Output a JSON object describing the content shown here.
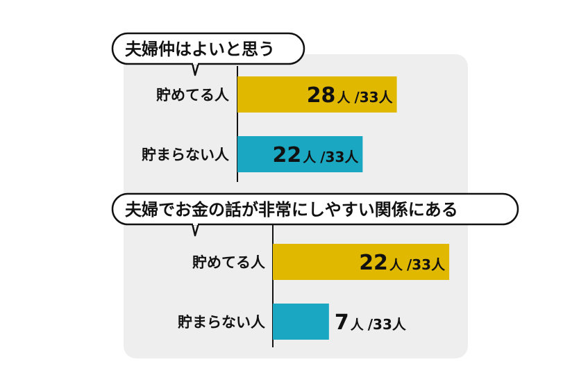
{
  "colors": {
    "saving": "#e1b800",
    "not_saving": "#1aa7c1",
    "panel": "#efeeee"
  },
  "chart_data": [
    {
      "type": "bar",
      "orientation": "horizontal",
      "title": "夫婦仲はよいと思う",
      "categories": [
        "貯めてる人",
        "貯まらない人"
      ],
      "values": [
        28,
        22
      ],
      "value_unit": "人",
      "total_label": "/33人",
      "total": 33
    },
    {
      "type": "bar",
      "orientation": "horizontal",
      "title": "夫婦でお金の話が非常にしやすい関係にある",
      "categories": [
        "貯めてる人",
        "貯まらない人"
      ],
      "values": [
        22,
        7
      ],
      "value_unit": "人",
      "total_label": "/33人",
      "total": 33
    }
  ]
}
